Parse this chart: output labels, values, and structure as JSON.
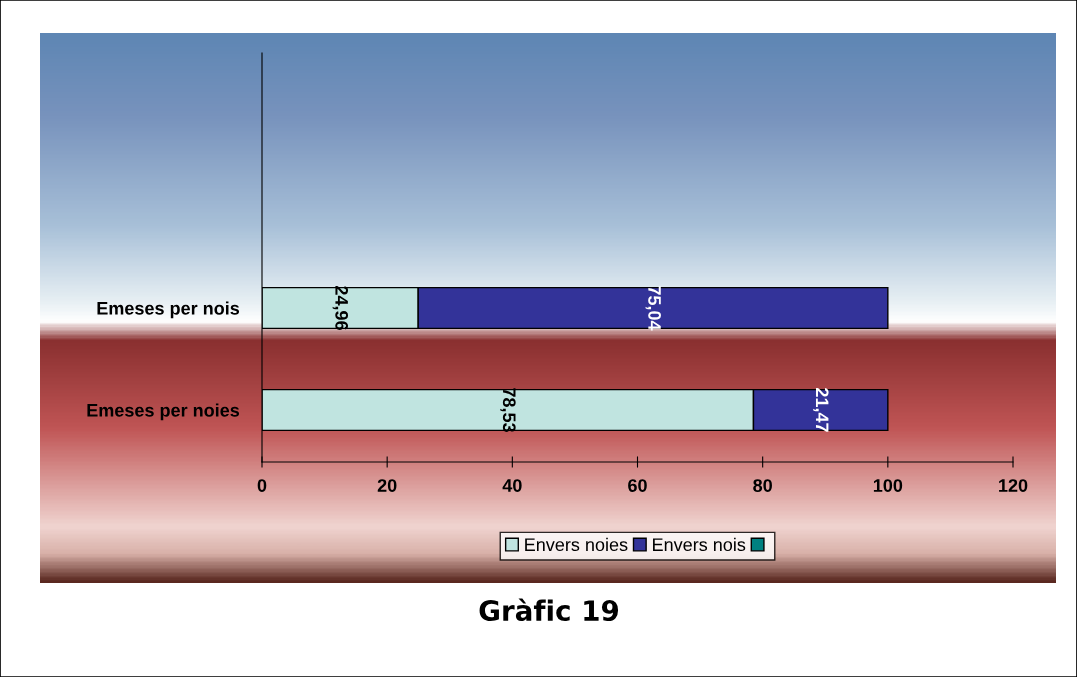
{
  "chart_data": {
    "type": "bar",
    "orientation": "horizontal",
    "stacked": true,
    "title": "Gràfic 19",
    "categories": [
      "Emeses per nois",
      "Emeses per noies"
    ],
    "series": [
      {
        "name": "Envers noies",
        "color": "#c0e4e0",
        "values": [
          24.96,
          78.53
        ],
        "value_labels": [
          "24,96",
          "78,53"
        ]
      },
      {
        "name": "Envers nois",
        "color": "#333399",
        "values": [
          75.04,
          21.47
        ],
        "value_labels": [
          "75,04",
          "21,47"
        ]
      },
      {
        "color": "#008080",
        "values": [
          null,
          null
        ]
      }
    ],
    "xlim": [
      0,
      120
    ],
    "xticks": [
      0,
      20,
      40,
      60,
      80,
      100,
      120
    ],
    "grid": false,
    "legend": "bottom"
  }
}
